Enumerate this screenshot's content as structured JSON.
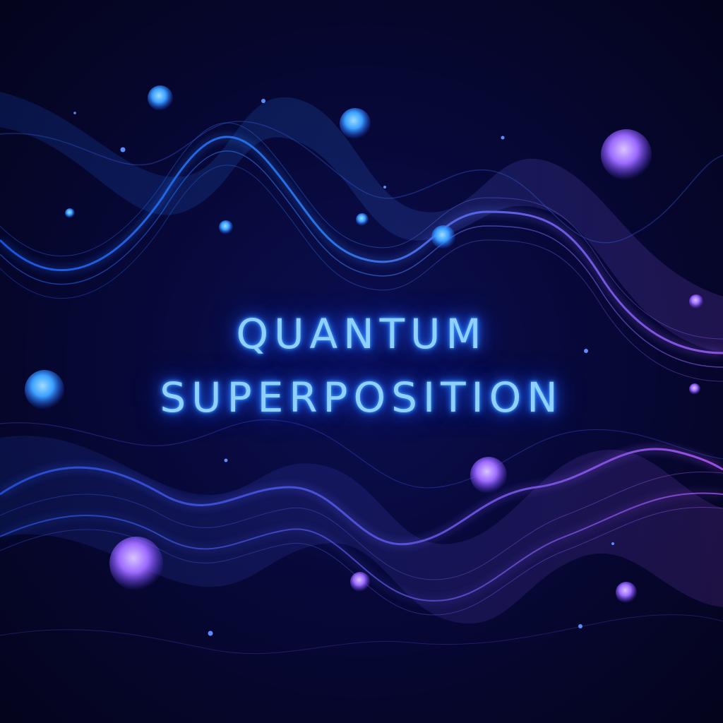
{
  "headline": {
    "line1": "QUANTUM",
    "line2": "SUPERPOSITION"
  },
  "colors": {
    "background": "#050524",
    "wave_blue": "#2f7bff",
    "wave_violet": "#9b5cff",
    "text_glow": "#8fd0ff",
    "orb_blue": "#3aa0ff",
    "orb_violet": "#9d6bff"
  }
}
